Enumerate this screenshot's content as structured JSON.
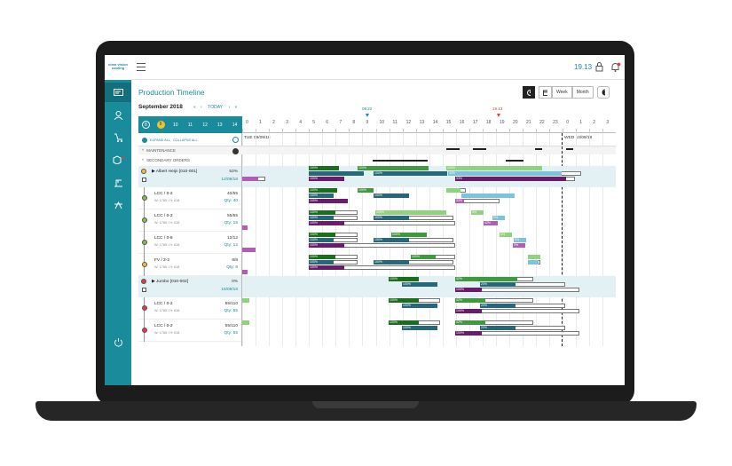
{
  "app": {
    "logo_text": "clear vision cooling",
    "clock": "19.13",
    "page_title": "Production Timeline"
  },
  "controls": {
    "week": "Week",
    "month": "Month"
  },
  "calendar": {
    "month": "September 2018",
    "today": "TODAY",
    "days": [
      "8",
      "9",
      "10",
      "11",
      "12",
      "13",
      "14"
    ],
    "selected_day": "9",
    "hours": [
      "0",
      "1",
      "2",
      "3",
      "4",
      "5",
      "6",
      "7",
      "8",
      "9",
      "10",
      "11",
      "12",
      "13",
      "14",
      "15",
      "16",
      "17",
      "18",
      "19",
      "20",
      "21",
      "22",
      "23",
      "0",
      "1",
      "2",
      "3"
    ],
    "marker_now": "09.22",
    "marker_end": "19.13"
  },
  "toolbar": {
    "expand_all": "EXPAND ALL",
    "collapse_all": "COLLAPSE ALL"
  },
  "dates": {
    "day1": "TUE 09/09/18",
    "day2": "WED 10/09/18"
  },
  "sections": {
    "maintenance": "MAINTENANCE",
    "secondary": "SECONDARY ORDERS"
  },
  "orders": [
    {
      "title": "Albert Heijn [010-001]",
      "pct": "53%",
      "date": "12/09/18",
      "status": "#f2c12e",
      "children": [
        {
          "name": "LCC / 0-2",
          "spec": "W: 1785 / H: 618",
          "qty": "40/55",
          "qty2": "Qty: 40",
          "status": "#7bc143"
        },
        {
          "name": "LCC / 0-2",
          "spec": "W: 1785 / H: 618",
          "qty": "55/55",
          "qty2": "Qty: 15",
          "status": "#7bc143"
        },
        {
          "name": "LCC / 0-6",
          "spec": "W: 1785 / H: 618",
          "qty": "12/12",
          "qty2": "Qty: 12",
          "status": "#7bc143"
        },
        {
          "name": "FV / 2-2",
          "spec": "W: 1785 / H: 618",
          "qty": "8/8",
          "qty2": "Qty: 6",
          "status": "#f2c12e"
        }
      ]
    },
    {
      "title": "Jumbo [010-002]",
      "pct": "0%",
      "date": "16/09/18",
      "status": "#e53945",
      "children": [
        {
          "name": "LCC / 0-2",
          "spec": "W: 1785 / H: 618",
          "qty": "55/110",
          "qty2": "Qty: 55",
          "status": "#e53945"
        },
        {
          "name": "LCC / 0-2",
          "spec": "W: 1785 / H: 618",
          "qty": "55/110",
          "qty2": "Qty: 55",
          "status": "#e53945"
        }
      ]
    }
  ],
  "bar_labels": {
    "p100": "100%",
    "p33": "33%",
    "p42": "42%",
    "p20": "20%",
    "p0": "0%",
    "p8": "8%"
  },
  "colors": {
    "teal": "#1a8b9a",
    "green_dark": "#1b6e1c",
    "green": "#3e9a3c",
    "green_light": "#8fd37c",
    "teal_dark": "#27677a",
    "blue_light": "#7cc4dd",
    "purple": "#6b1b6b",
    "purple_light": "#b45cb4"
  }
}
